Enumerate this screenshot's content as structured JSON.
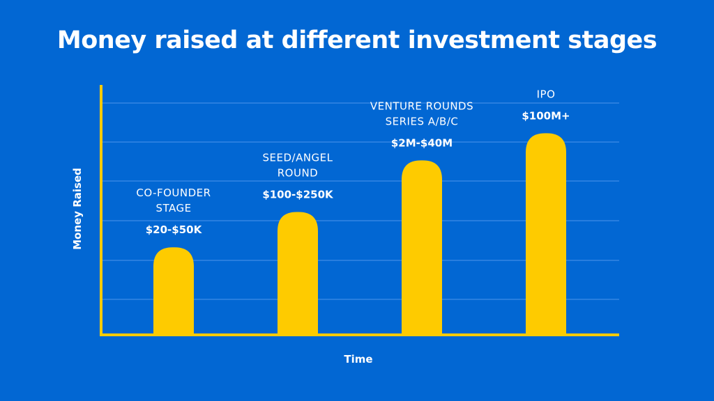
{
  "colors": {
    "background": "#0267d3",
    "bar": "#fecb00",
    "axis": "#fecb00",
    "grid": "#3f8de6",
    "text": "#ffffff"
  },
  "chart_data": {
    "type": "bar",
    "title": "Money raised at different investment stages",
    "xlabel": "Time",
    "ylabel": "Money Raised",
    "grid": true,
    "ylim": [
      0,
      100
    ],
    "gridlines": 6,
    "categories": [
      [
        "CO-FOUNDER",
        "STAGE"
      ],
      [
        "SEED/ANGEL",
        "ROUND"
      ],
      [
        "VENTURE ROUNDS",
        "SERIES A/B/C"
      ],
      [
        "IPO"
      ]
    ],
    "data_labels": [
      "$20-$50K",
      "$100-$250K",
      "$2M-$40M",
      "$100M+"
    ],
    "values": [
      32,
      45,
      64,
      74
    ]
  }
}
